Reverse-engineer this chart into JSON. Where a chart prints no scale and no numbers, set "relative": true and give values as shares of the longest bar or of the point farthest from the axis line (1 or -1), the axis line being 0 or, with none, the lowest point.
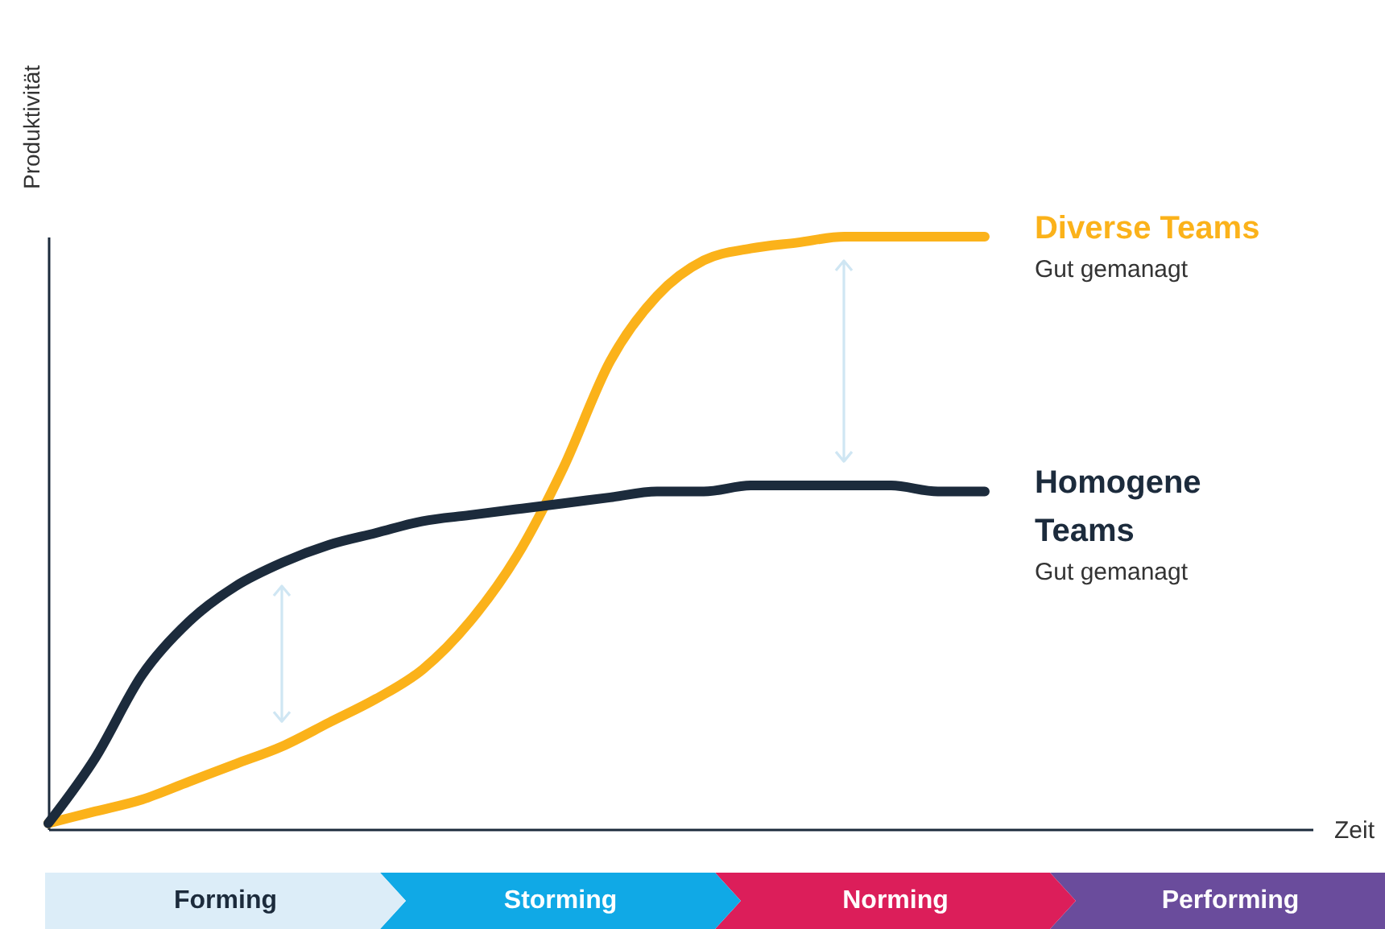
{
  "chart_data": {
    "type": "line",
    "relative": true,
    "xlabel": "Zeit",
    "ylabel": "Produktivität",
    "categories": [
      null,
      null,
      null,
      null,
      null,
      null,
      null,
      null,
      null,
      null,
      null,
      null,
      null,
      null,
      null,
      null,
      null,
      null,
      null,
      null,
      null,
      null,
      null,
      null,
      null,
      null,
      null,
      null
    ],
    "series": [
      {
        "name": "Diverse Teams",
        "color": "#fbb21a",
        "values": [
          0.01,
          0.03,
          0.05,
          0.08,
          0.11,
          0.14,
          0.18,
          0.22,
          0.27,
          0.35,
          0.46,
          0.61,
          0.79,
          0.9,
          0.96,
          0.98,
          0.99,
          1.0,
          1.0,
          1.0,
          1.0,
          null,
          null,
          null,
          null,
          null,
          null,
          null
        ]
      },
      {
        "name": "Homogene Teams",
        "color": "#1c2b3c",
        "values": [
          0.01,
          0.12,
          0.26,
          0.35,
          0.41,
          0.45,
          0.48,
          0.5,
          0.52,
          0.53,
          0.54,
          0.55,
          0.56,
          0.57,
          0.57,
          0.58,
          0.58,
          0.58,
          0.58,
          0.57,
          0.57,
          null,
          null,
          null,
          null,
          null,
          null,
          null
        ]
      }
    ],
    "annotations": [
      "Gut gemanagt",
      "Gut gemanagt",
      "Forming",
      "Storming",
      "Norming",
      "Performing"
    ],
    "grid": false,
    "legend": false
  }
}
